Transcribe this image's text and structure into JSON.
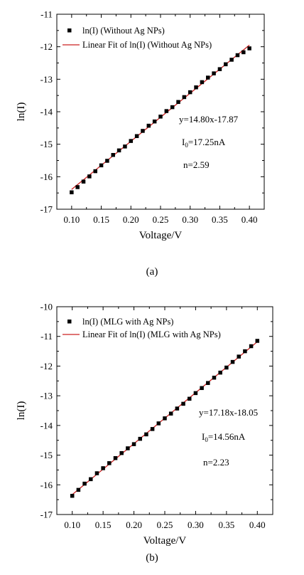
{
  "chart_data": [
    {
      "type": "scatter",
      "panel_label": "(a)",
      "xlabel": "Voltage/V",
      "ylabel": "ln(I)",
      "xlim": [
        0.075,
        0.425
      ],
      "ylim": [
        -17,
        -11
      ],
      "xticks": [
        "0.10",
        "0.15",
        "0.20",
        "0.25",
        "0.30",
        "0.35",
        "0.40"
      ],
      "yticks": [
        "-17",
        "-16",
        "-15",
        "-14",
        "-13",
        "-12",
        "-11"
      ],
      "legend_position": "top-left",
      "series": [
        {
          "name": "ln(I) (Without Ag NPs)",
          "kind": "points",
          "color": "#000000",
          "x": [
            0.1,
            0.11,
            0.12,
            0.13,
            0.14,
            0.15,
            0.16,
            0.17,
            0.18,
            0.19,
            0.2,
            0.21,
            0.22,
            0.23,
            0.24,
            0.25,
            0.26,
            0.27,
            0.28,
            0.29,
            0.3,
            0.31,
            0.32,
            0.33,
            0.34,
            0.35,
            0.36,
            0.37,
            0.38,
            0.39,
            0.4
          ],
          "y": [
            -16.48,
            -16.32,
            -16.15,
            -15.99,
            -15.83,
            -15.65,
            -15.51,
            -15.33,
            -15.19,
            -15.07,
            -14.9,
            -14.75,
            -14.59,
            -14.43,
            -14.3,
            -14.15,
            -13.98,
            -13.86,
            -13.7,
            -13.55,
            -13.4,
            -13.25,
            -13.09,
            -12.95,
            -12.82,
            -12.69,
            -12.54,
            -12.4,
            -12.26,
            -12.17,
            -12.05
          ]
        },
        {
          "name": "Linear Fit of ln(I) (Without Ag NPs)",
          "kind": "line",
          "color": "#cc2222",
          "x": [
            0.1,
            0.4
          ],
          "y": [
            -16.39,
            -11.95
          ]
        }
      ],
      "annotations": [
        {
          "text": "y=14.80x-17.87"
        },
        {
          "text": "I",
          "sub": "0",
          "rest": "=17.25nA"
        },
        {
          "text": "n=2.59"
        }
      ]
    },
    {
      "type": "scatter",
      "panel_label": "(b)",
      "xlabel": "Voltage/V",
      "ylabel": "ln(I)",
      "xlim": [
        0.075,
        0.425
      ],
      "ylim": [
        -17,
        -10
      ],
      "xticks": [
        "0.10",
        "0.15",
        "0.20",
        "0.25",
        "0.30",
        "0.35",
        "0.40"
      ],
      "yticks": [
        "-17",
        "-16",
        "-15",
        "-14",
        "-13",
        "-12",
        "-11",
        "-10"
      ],
      "legend_position": "top-left",
      "series": [
        {
          "name": "ln(I) (MLG with Ag NPs)",
          "kind": "points",
          "color": "#000000",
          "x": [
            0.1,
            0.11,
            0.12,
            0.13,
            0.14,
            0.15,
            0.16,
            0.17,
            0.18,
            0.19,
            0.2,
            0.21,
            0.22,
            0.23,
            0.24,
            0.25,
            0.26,
            0.27,
            0.28,
            0.29,
            0.3,
            0.31,
            0.32,
            0.33,
            0.34,
            0.35,
            0.36,
            0.37,
            0.38,
            0.39,
            0.4
          ],
          "y": [
            -16.37,
            -16.17,
            -15.96,
            -15.81,
            -15.61,
            -15.44,
            -15.27,
            -15.1,
            -14.93,
            -14.77,
            -14.63,
            -14.45,
            -14.3,
            -14.12,
            -13.93,
            -13.76,
            -13.6,
            -13.43,
            -13.27,
            -13.1,
            -12.91,
            -12.74,
            -12.57,
            -12.39,
            -12.22,
            -12.05,
            -11.86,
            -11.68,
            -11.5,
            -11.33,
            -11.15
          ]
        },
        {
          "name": "Linear Fit of ln(I) (MLG with Ag NPs)",
          "kind": "line",
          "color": "#cc2222",
          "x": [
            0.1,
            0.4
          ],
          "y": [
            -16.33,
            -11.18
          ]
        }
      ],
      "annotations": [
        {
          "text": "y=17.18x-18.05"
        },
        {
          "text": "I",
          "sub": "0",
          "rest": "=14.56nA"
        },
        {
          "text": "n=2.23"
        }
      ]
    }
  ]
}
